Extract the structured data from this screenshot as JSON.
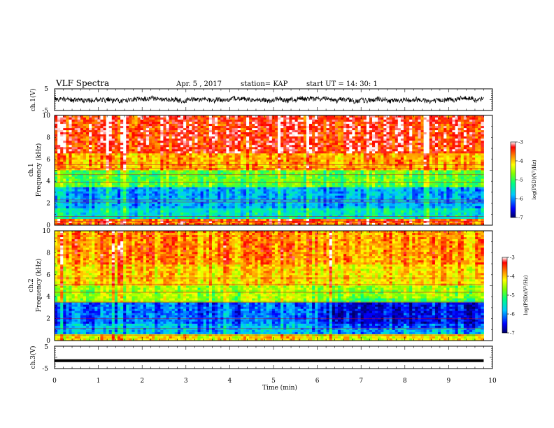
{
  "header": {
    "title": "VLF Spectra",
    "date": "Apr. 5  , 2017",
    "station": "station= KAP",
    "start_ut": "start  UT  =   14: 30: 1"
  },
  "chart_data": [
    {
      "type": "line",
      "panel": "ch1-waveform",
      "ylabel": "ch.1(V)",
      "ylim": [
        -5,
        5
      ],
      "yticks": [
        "5",
        "-5"
      ],
      "x_range_min": [
        0,
        9.8
      ],
      "amplitude_range_V": [
        -1.8,
        1.8
      ]
    },
    {
      "type": "heatmap",
      "panel": "ch1-spectrogram",
      "ylabel": [
        "ch.1",
        "Frequency  (kHz)"
      ],
      "ylim": [
        0,
        10
      ],
      "yticks": [
        "0",
        "2",
        "4",
        "6",
        "8",
        "10"
      ],
      "colorbar": {
        "label": "log(PSD)(V²/Hz)",
        "range": [
          -7,
          -3
        ],
        "ticks": [
          "-3",
          "-4",
          "-5",
          "-6",
          "-7"
        ]
      },
      "bands": [
        {
          "f": [
            0,
            0.5
          ],
          "level": -3.6
        },
        {
          "f": [
            0.5,
            1.5
          ],
          "level": -5.5
        },
        {
          "f": [
            1.5,
            3.5
          ],
          "level": -5.9
        },
        {
          "f": [
            3.5,
            5.0
          ],
          "level": -4.9
        },
        {
          "f": [
            5.0,
            6.5
          ],
          "level": -3.9
        },
        {
          "f": [
            6.5,
            10
          ],
          "level": -3.4
        }
      ]
    },
    {
      "type": "heatmap",
      "panel": "ch2-spectrogram",
      "ylabel": [
        "ch.2",
        "Frequency  (kHz)"
      ],
      "ylim": [
        0,
        10
      ],
      "yticks": [
        "0",
        "2",
        "4",
        "6",
        "8",
        "10"
      ],
      "colorbar": {
        "label": "log(PSD)(V²/Hz)",
        "range": [
          -7,
          -3
        ],
        "ticks": [
          "-3",
          "-4",
          "-5",
          "-6",
          "-7"
        ]
      },
      "bands": [
        {
          "f": [
            0,
            0.5
          ],
          "level": -4.2
        },
        {
          "f": [
            0.5,
            1.5
          ],
          "level": -5.9
        },
        {
          "f": [
            1.5,
            3.5
          ],
          "level": -6.2
        },
        {
          "f": [
            3.5,
            5.0
          ],
          "level": -4.6
        },
        {
          "f": [
            5.0,
            7.0
          ],
          "level": -4.1
        },
        {
          "f": [
            7.0,
            10
          ],
          "level": -3.8
        }
      ]
    },
    {
      "type": "line",
      "panel": "ch3-waveform",
      "ylabel": "ch.3(V)",
      "ylim": [
        -5,
        5
      ],
      "yticks": [
        "5",
        "-5"
      ],
      "x_range_min": [
        0,
        9.8
      ],
      "level_V": -1.5
    }
  ],
  "xaxis": {
    "label": "Time  (min)",
    "range": [
      0,
      10
    ],
    "ticks": [
      "0",
      "1",
      "2",
      "3",
      "4",
      "5",
      "6",
      "7",
      "8",
      "9",
      "10"
    ]
  },
  "colors": {
    "colormap": [
      "#000066",
      "#0000ff",
      "#00c8ff",
      "#00ff80",
      "#80ff00",
      "#ffff00",
      "#ff8000",
      "#ff0000",
      "#ffffff"
    ],
    "trace": "#000000"
  }
}
